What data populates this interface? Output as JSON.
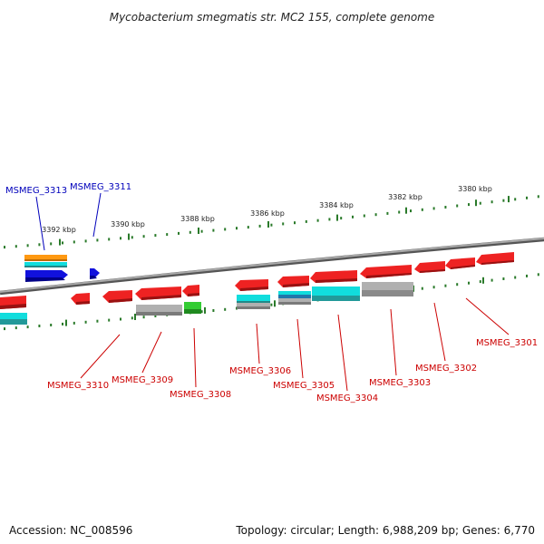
{
  "title": "Mycobacterium smegmatis str. MC2 155, complete genome",
  "footer": {
    "accession": "Accession: NC_008596",
    "summary": "Topology: circular; Length: 6,988,209 bp; Genes: 6,770"
  },
  "colors": {
    "backbone": "#888888",
    "tick": "#2a7a2a",
    "forward_label": "#0000bb",
    "reverse_label": "#cc0000",
    "gene_red": "#ee2222",
    "gene_blue": "#1111dd",
    "gene_cyan": "#11dddd",
    "gene_gray": "#aaaaaa",
    "gene_green": "#33cc33",
    "gene_orange": "#ff9911",
    "gene_teal": "#229999"
  },
  "ruler": {
    "labels": [
      "3380 kbp",
      "3382 kbp",
      "3384 kbp",
      "3386 kbp",
      "3388 kbp",
      "3390 kbp",
      "3392 kbp"
    ]
  },
  "genes": {
    "forward": [
      {
        "id": "MSMEG_3313"
      },
      {
        "id": "MSMEG_3311"
      }
    ],
    "reverse": [
      {
        "id": "MSMEG_3310"
      },
      {
        "id": "MSMEG_3309"
      },
      {
        "id": "MSMEG_3308"
      },
      {
        "id": "MSMEG_3306"
      },
      {
        "id": "MSMEG_3305"
      },
      {
        "id": "MSMEG_3304"
      },
      {
        "id": "MSMEG_3303"
      },
      {
        "id": "MSMEG_3302"
      },
      {
        "id": "MSMEG_3301"
      }
    ]
  }
}
